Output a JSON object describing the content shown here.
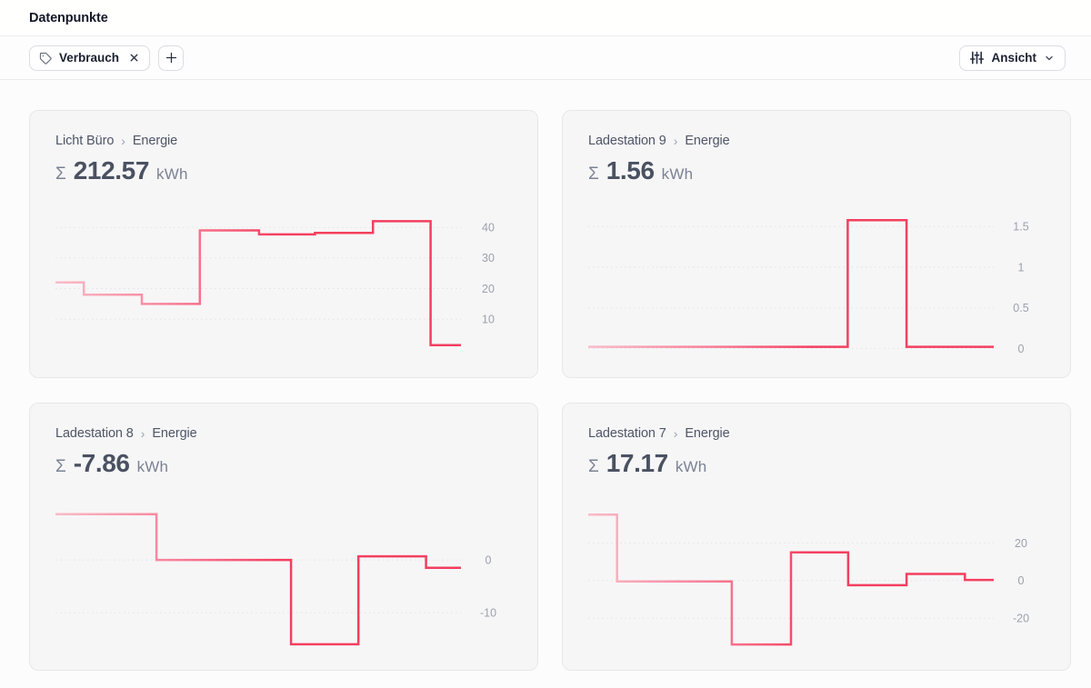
{
  "header": {
    "title": "Datenpunkte"
  },
  "filter_bar": {
    "tag_chip": {
      "label": "Verbrauch",
      "icon": "tag-icon",
      "close_icon": "close-icon"
    },
    "add_button": {
      "icon": "plus-icon"
    },
    "view_button": {
      "label": "Ansicht",
      "icon": "sliders-icon",
      "chevron": "chevron-down-icon"
    }
  },
  "colors": {
    "accent": "#f43f5e",
    "line_gradient_stops": [
      {
        "offset": "0%",
        "color": "#f9bcc8"
      },
      {
        "offset": "30%",
        "color": "#f87e96"
      },
      {
        "offset": "55%",
        "color": "#f43f5e"
      },
      {
        "offset": "100%",
        "color": "#f43f5e"
      }
    ],
    "gridline": "#e3e3e7",
    "tick_label": "#9ba1ac",
    "card_bg": "#f6f6f7",
    "card_border": "#e8e8eb"
  },
  "cards": [
    {
      "breadcrumb": {
        "source": "Licht Büro",
        "separator": "›",
        "metric": "Energie"
      },
      "total": {
        "sigma": "Σ",
        "value": "212.57",
        "unit": "kWh"
      },
      "chart_data": {
        "type": "line",
        "step": true,
        "grid": "dotted-horizontal",
        "legend": "none",
        "ylabel": "kWh",
        "y_ticks": [
          40,
          30,
          20,
          10
        ],
        "ylim": [
          -3,
          44.5
        ],
        "segments": {
          "values": [
            22,
            18,
            15,
            39,
            37.7,
            38.2,
            42,
            1.5
          ],
          "breaks_pct": [
            0,
            7,
            21.3,
            35.6,
            50.2,
            64,
            78.3,
            92.5,
            100
          ]
        }
      }
    },
    {
      "breadcrumb": {
        "source": "Ladestation 9",
        "separator": "›",
        "metric": "Energie"
      },
      "total": {
        "sigma": "Σ",
        "value": "1.56",
        "unit": "kWh"
      },
      "chart_data": {
        "type": "line",
        "step": true,
        "grid": "dotted-horizontal",
        "legend": "none",
        "ylabel": "kWh",
        "y_ticks": [
          1.5,
          1,
          0.5,
          0
        ],
        "ylim": [
          -0.13,
          1.66
        ],
        "segments": {
          "values": [
            0.02,
            1.58,
            0.02
          ],
          "breaks_pct": [
            0,
            64,
            78.5,
            100
          ]
        }
      }
    },
    {
      "breadcrumb": {
        "source": "Ladestation 8",
        "separator": "›",
        "metric": "Energie"
      },
      "total": {
        "sigma": "Σ",
        "value": "-7.86",
        "unit": "kWh"
      },
      "chart_data": {
        "type": "line",
        "step": true,
        "grid": "dotted-horizontal",
        "legend": "none",
        "ylabel": "kWh",
        "y_ticks": [
          0,
          -10
        ],
        "ylim": [
          -17.4,
          10.2
        ],
        "segments": {
          "values": [
            8.7,
            0,
            -16,
            0.7,
            -1.5
          ],
          "breaks_pct": [
            0,
            24.9,
            58.1,
            74.7,
            91.4,
            100
          ]
        }
      }
    },
    {
      "breadcrumb": {
        "source": "Ladestation 7",
        "separator": "›",
        "metric": "Energie"
      },
      "total": {
        "sigma": "Σ",
        "value": "17.17",
        "unit": "kWh"
      },
      "chart_data": {
        "type": "line",
        "step": true,
        "grid": "dotted-horizontal",
        "legend": "none",
        "ylabel": "kWh",
        "y_ticks": [
          20,
          0,
          -20
        ],
        "ylim": [
          -37.8,
          39.5
        ],
        "segments": {
          "values": [
            35,
            -0.5,
            -34,
            15,
            -2.5,
            3.5,
            0.3
          ],
          "breaks_pct": [
            0,
            7.1,
            35.4,
            50,
            64.1,
            78.5,
            92.9,
            100
          ]
        }
      }
    }
  ]
}
